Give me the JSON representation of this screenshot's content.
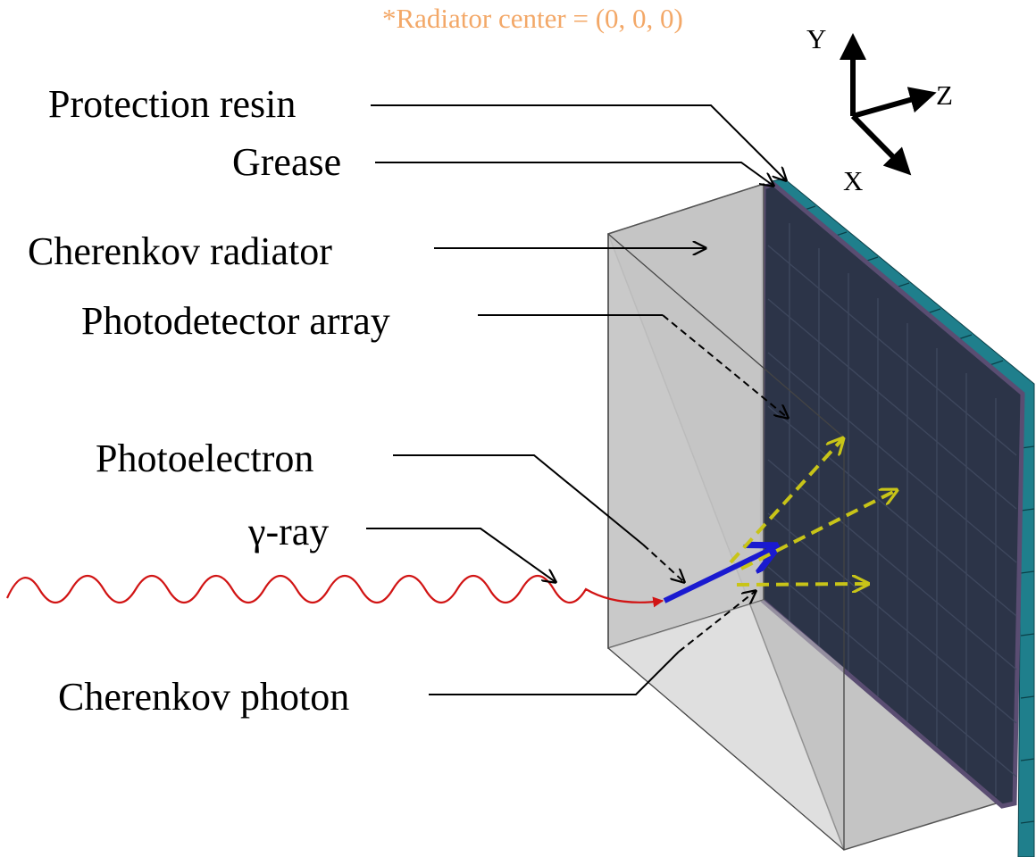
{
  "colors": {
    "radiator": "#c4c4c4",
    "detector": "#2c3448",
    "detector_edge": "#5a4d72",
    "resin": "#1f7f8c",
    "gamma": "#d11414",
    "photoelectron": "#1a1ad0",
    "photon": "#c8c418",
    "note": "#f3a868"
  },
  "note": "*Radiator center = (0, 0, 0)",
  "axes": {
    "y": "Y",
    "z": "Z",
    "x": "X"
  },
  "labels": {
    "protection_resin": "Protection resin",
    "grease": "Grease",
    "cherenkov_radiator": "Cherenkov radiator",
    "photodetector_array": "Photodetector array",
    "photoelectron": "Photoelectron",
    "gamma_ray": "γ-ray",
    "cherenkov_photon": "Cherenkov photon"
  },
  "icons": {
    "arrowhead": "arrowhead-icon"
  }
}
